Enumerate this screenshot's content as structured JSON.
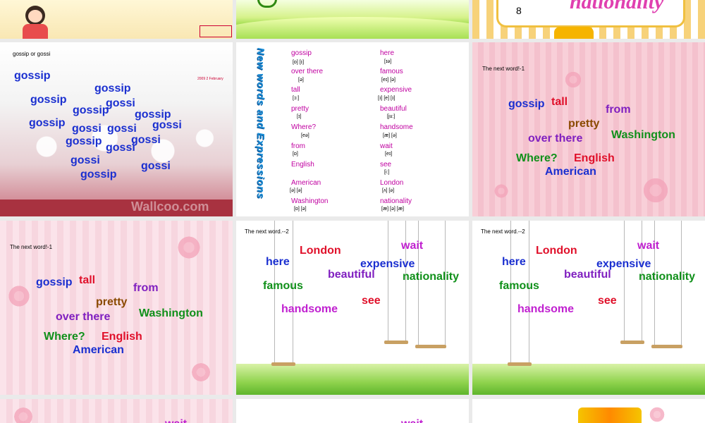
{
  "slide_top_right": {
    "number": "8",
    "title_fragment": "nationality"
  },
  "slide_gossip": {
    "title": "gossip or gossi",
    "watermark": "Wallcoo.com",
    "date_text": "2009 2 February",
    "words": [
      "gossip",
      "gossip",
      "gossip",
      "gossi",
      "gossip",
      "gossip",
      "gossip",
      "gossi",
      "gossi",
      "gossi",
      "gossip",
      "gossi",
      "gossi",
      "gossi",
      "gossip",
      "gossi"
    ]
  },
  "slide_new_words": {
    "vertical_title": "New words and Expressions",
    "left_column": [
      {
        "word": "gossip",
        "phon": "[ɒ]   [ɪ]"
      },
      {
        "word": "over there",
        "phon": "[ə]"
      },
      {
        "word": "tall",
        "phon": "[ɔ:]"
      },
      {
        "word": "pretty",
        "phon": "[ɪ]"
      },
      {
        "word": "Where?",
        "phon": "[eə]"
      },
      {
        "word": "from",
        "phon": "[ɒ]"
      },
      {
        "word": "English",
        "phon": ""
      },
      {
        "word": "American",
        "phon": "[ə]         [ə]"
      },
      {
        "word": "Washington",
        "phon": "[ɒ]            [ə]"
      }
    ],
    "right_column": [
      {
        "word": "here",
        "phon": "[ɪə]"
      },
      {
        "word": "famous",
        "phon": "[eɪ]   [ə]"
      },
      {
        "word": "expensive",
        "phon": "[ɪ]        [e]     [ɪ]"
      },
      {
        "word": "beautiful",
        "phon": "[ju:]"
      },
      {
        "word": "handsome",
        "phon": "[æ]      [ə]"
      },
      {
        "word": "wait",
        "phon": "[eɪ]"
      },
      {
        "word": "see",
        "phon": "[i:]"
      },
      {
        "word": "London",
        "phon": "[ʌ]       [ə]"
      },
      {
        "word": "nationality",
        "phon": "[æ] [ə] [æ]"
      }
    ]
  },
  "slide_next1": {
    "title": "The next word!-1",
    "words": {
      "gossip": "gossip",
      "tall": "tall",
      "from": "from",
      "pretty": "pretty",
      "over_there": "over there",
      "washington": "Washington",
      "where": "Where?",
      "english": "English",
      "american": "American"
    }
  },
  "slide_next2": {
    "title": "The next word.--2",
    "words": {
      "london": "London",
      "wait": "wait",
      "here": "here",
      "expensive": "expensive",
      "beautiful": "beautiful",
      "nationality": "nationality",
      "famous": "famous",
      "see": "see",
      "handsome": "handsome"
    }
  },
  "bottom_partial": {
    "wait_a": "wait",
    "wait_b": "wait"
  }
}
